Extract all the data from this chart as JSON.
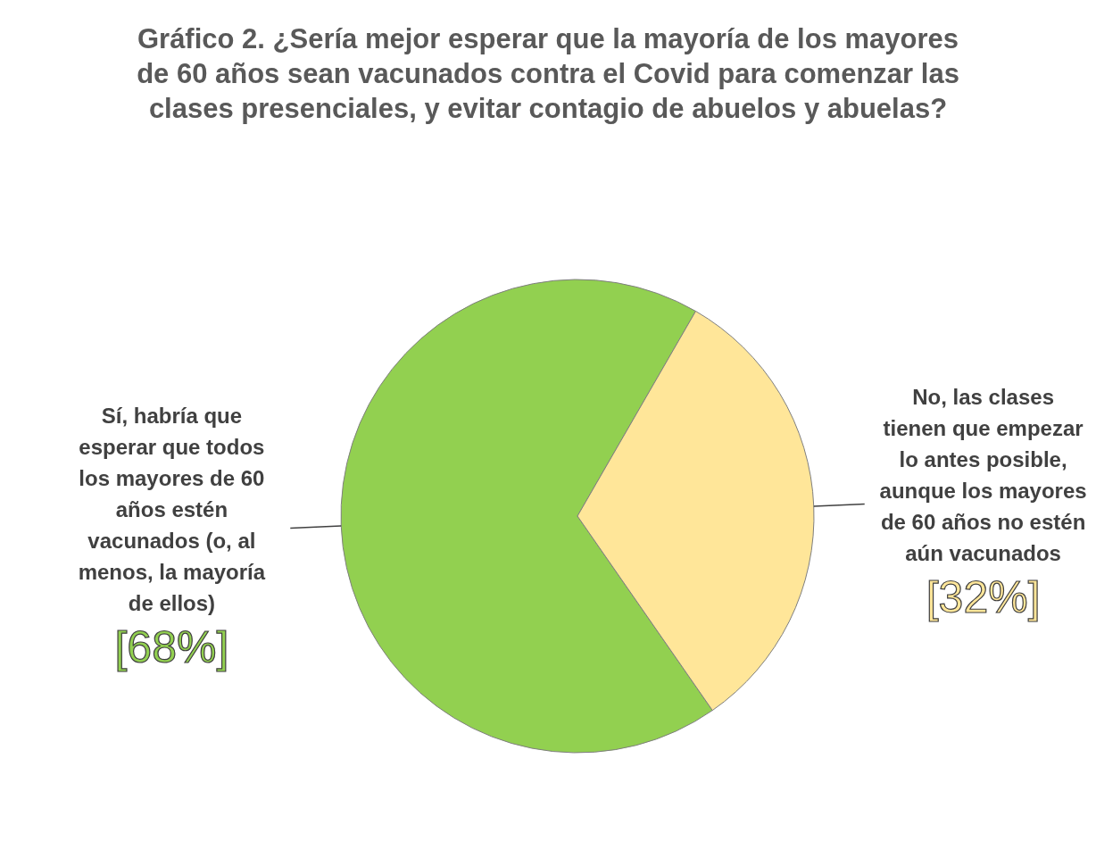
{
  "chart_data": {
    "type": "pie",
    "title": "Gráfico 2. ¿Sería mejor esperar que la mayoría de los mayores de 60 años sean vacunados contra el Covid para comenzar las clases presenciales, y evitar contagio de abuelos y abuelas?",
    "categories": [
      "Sí, habría que esperar que todos los mayores de 60 años estén vacunados (o, al menos, la mayoría de ellos)",
      "No, las clases tienen que empezar lo antes posible, aunque los mayores de 60 años no estén aún vacunados"
    ],
    "values": [
      68,
      32
    ],
    "colors": [
      "#92d050",
      "#ffe699"
    ],
    "value_labels": [
      "[68%]",
      "[32%]"
    ]
  }
}
